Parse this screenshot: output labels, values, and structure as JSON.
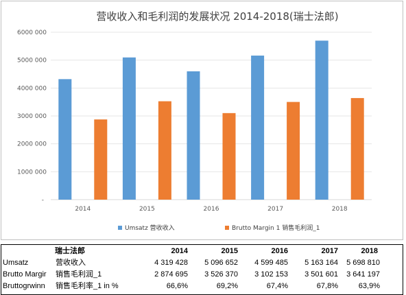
{
  "chart_data": {
    "type": "bar",
    "title": "营收收入和毛利润的发展状况 2014-2018(瑞士法郎)",
    "categories": [
      "2014",
      "2015",
      "2016",
      "2017",
      "2018"
    ],
    "series": [
      {
        "name": "Umsatz 营收收入",
        "color": "#5B9BD5",
        "values": [
          4319428,
          5096652,
          4599485,
          5163164,
          5698810
        ]
      },
      {
        "name": "Brutto Margin 1 销售毛利润_1",
        "color": "#ED7D31",
        "values": [
          2874695,
          3526370,
          3102153,
          3501601,
          3641197
        ]
      }
    ],
    "ylim": [
      0,
      6000000
    ],
    "yticks": [
      "-",
      "1000 000",
      "2000 000",
      "3000 000",
      "4000 000",
      "5000 000",
      "6000 000"
    ],
    "grid": true,
    "legend_position": "bottom"
  },
  "table": {
    "header": {
      "company": "瑞士法郎",
      "years": [
        "2014",
        "2015",
        "2016",
        "2017",
        "2018"
      ]
    },
    "rows": [
      {
        "label_de": "Umsatz",
        "label_cn": "营收收入",
        "values": [
          "4 319 428",
          "5 096 652",
          "4 599 485",
          "5 163 164",
          "5 698 810"
        ]
      },
      {
        "label_de": "Brutto Margir",
        "label_cn": "销售毛利润_1",
        "values": [
          "2 874 695",
          "3 526 370",
          "3 102 153",
          "3 501 601",
          "3 641 197"
        ]
      },
      {
        "label_de": "Bruttogrwinn",
        "label_cn": "销售毛利率_1 in %",
        "values": [
          "66,6%",
          "69,2%",
          "67,4%",
          "67,8%",
          "63,9%"
        ]
      }
    ]
  }
}
